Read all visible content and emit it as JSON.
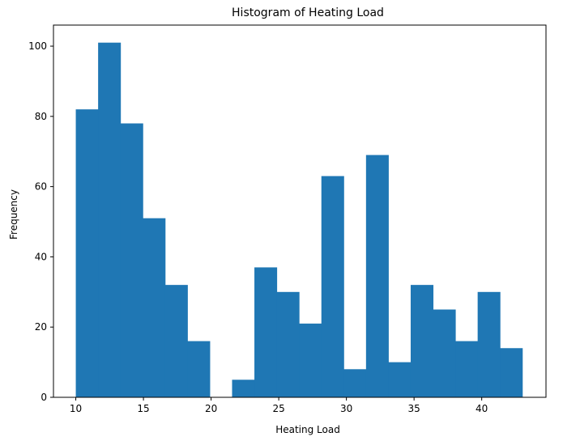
{
  "chart_data": {
    "type": "bar",
    "title": "Histogram of Heating Load",
    "xlabel": "Heating Load",
    "ylabel": "Frequency",
    "bar_color": "#1f77b4",
    "xlim": [
      8.35,
      44.75
    ],
    "ylim": [
      0,
      106
    ],
    "xticks": [
      10,
      15,
      20,
      25,
      30,
      35,
      40
    ],
    "yticks": [
      0,
      20,
      40,
      60,
      80,
      100
    ],
    "bin_edges": [
      10.0,
      11.65,
      13.3,
      14.95,
      16.6,
      18.25,
      19.9,
      21.55,
      23.2,
      24.85,
      26.5,
      28.15,
      29.8,
      31.45,
      33.1,
      34.75,
      36.4,
      38.05,
      39.7,
      41.35,
      43.0
    ],
    "values": [
      82,
      101,
      78,
      51,
      32,
      16,
      0,
      5,
      37,
      30,
      21,
      63,
      8,
      69,
      10,
      32,
      25,
      16,
      30,
      14
    ],
    "grid": false,
    "legend": false
  }
}
